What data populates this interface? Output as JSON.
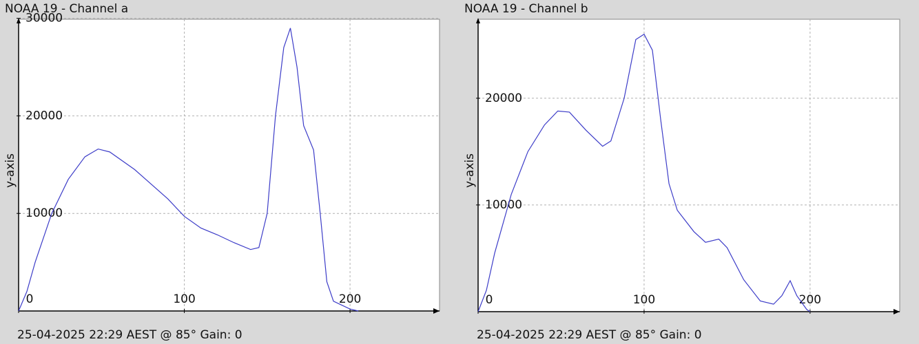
{
  "chart_data": [
    {
      "type": "line",
      "title": "NOAA 19 - Channel a",
      "ylabel": "y-axis",
      "footer": "25-04-2025 22:29 AEST @ 85° Gain: 0",
      "x": [
        0,
        5,
        10,
        20,
        30,
        40,
        48,
        55,
        70,
        90,
        100,
        110,
        120,
        130,
        140,
        145,
        150,
        155,
        160,
        164,
        168,
        172,
        178,
        182,
        186,
        190,
        200,
        205
      ],
      "values": [
        0,
        2000,
        5000,
        10000,
        13500,
        15800,
        16600,
        16300,
        14500,
        11500,
        9700,
        8500,
        7800,
        7000,
        6300,
        6500,
        10000,
        20000,
        27000,
        29000,
        25000,
        19000,
        16500,
        10000,
        3000,
        1000,
        200,
        0
      ],
      "color": "#3c3cc8",
      "xlim": [
        0,
        254
      ],
      "xticks": [
        0,
        100,
        200
      ],
      "ylim": [
        0,
        29900
      ],
      "yticks": [
        10000,
        20000,
        30000
      ],
      "grid": true
    },
    {
      "type": "line",
      "title": "NOAA 19 - Channel b",
      "ylabel": "y-axis",
      "footer": "25-04-2025 22:29 AEST @ 85° Gain: 0",
      "x": [
        0,
        5,
        10,
        20,
        30,
        40,
        48,
        55,
        65,
        75,
        80,
        88,
        95,
        100,
        105,
        110,
        115,
        120,
        130,
        137,
        145,
        150,
        160,
        170,
        178,
        183,
        188,
        192,
        198,
        200
      ],
      "values": [
        0,
        2000,
        5500,
        11000,
        15000,
        17500,
        18800,
        18700,
        17000,
        15500,
        16000,
        20000,
        25500,
        26000,
        24500,
        18000,
        12000,
        9500,
        7500,
        6500,
        6800,
        6000,
        3000,
        1000,
        700,
        1500,
        2900,
        1500,
        200,
        0
      ],
      "color": "#3c3cc8",
      "xlim": [
        0,
        254
      ],
      "xticks": [
        0,
        100,
        200
      ],
      "ylim": [
        0,
        27400
      ],
      "yticks": [
        10000,
        20000
      ],
      "grid": true
    }
  ]
}
